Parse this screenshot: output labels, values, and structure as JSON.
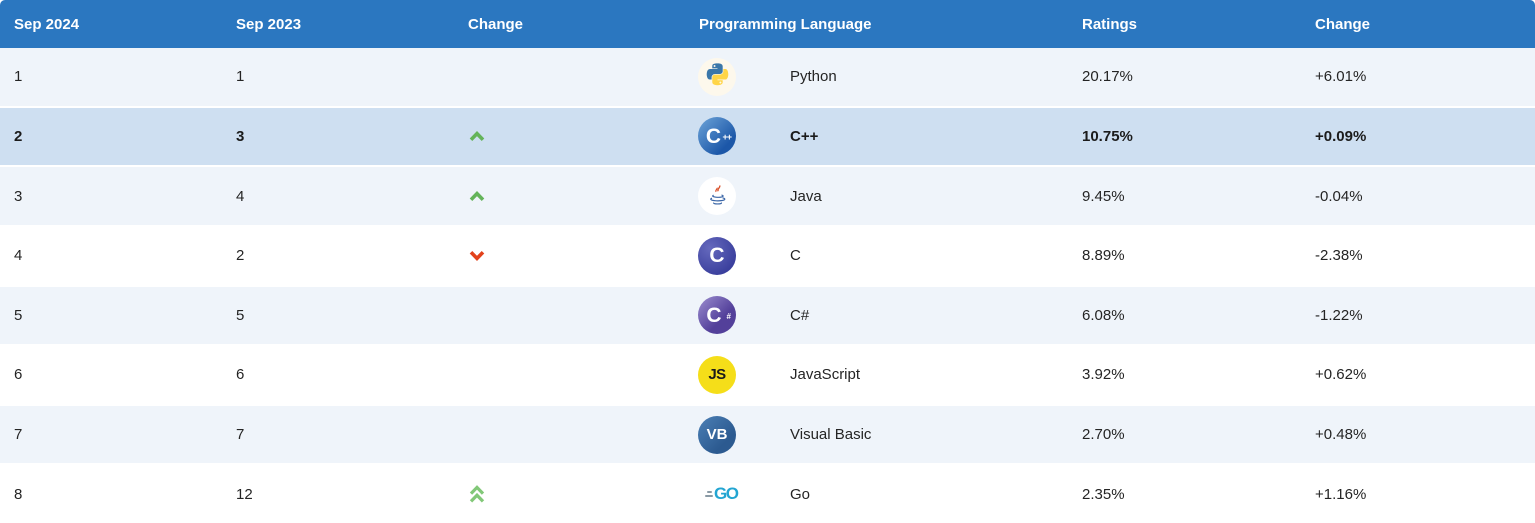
{
  "table": {
    "headers": {
      "rank_current": "Sep 2024",
      "rank_previous": "Sep 2023",
      "rank_change": "Change",
      "language": "Programming Language",
      "ratings": "Ratings",
      "ratings_change": "Change"
    },
    "rows": [
      {
        "rank_current": "1",
        "rank_previous": "1",
        "change": "none",
        "icon": "python-icon",
        "language": "Python",
        "ratings": "20.17%",
        "ratings_change": "+6.01%",
        "highlighted": false
      },
      {
        "rank_current": "2",
        "rank_previous": "3",
        "change": "up",
        "icon": "cpp-icon",
        "language": "C++",
        "ratings": "10.75%",
        "ratings_change": "+0.09%",
        "highlighted": true
      },
      {
        "rank_current": "3",
        "rank_previous": "4",
        "change": "up",
        "icon": "java-icon",
        "language": "Java",
        "ratings": "9.45%",
        "ratings_change": "-0.04%",
        "highlighted": false
      },
      {
        "rank_current": "4",
        "rank_previous": "2",
        "change": "down",
        "icon": "c-icon",
        "language": "C",
        "ratings": "8.89%",
        "ratings_change": "-2.38%",
        "highlighted": false
      },
      {
        "rank_current": "5",
        "rank_previous": "5",
        "change": "none",
        "icon": "csharp-icon",
        "language": "C#",
        "ratings": "6.08%",
        "ratings_change": "-1.22%",
        "highlighted": false
      },
      {
        "rank_current": "6",
        "rank_previous": "6",
        "change": "none",
        "icon": "javascript-icon",
        "language": "JavaScript",
        "ratings": "3.92%",
        "ratings_change": "+0.62%",
        "highlighted": false
      },
      {
        "rank_current": "7",
        "rank_previous": "7",
        "change": "none",
        "icon": "visual-basic-icon",
        "language": "Visual Basic",
        "ratings": "2.70%",
        "ratings_change": "+0.48%",
        "highlighted": false
      },
      {
        "rank_current": "8",
        "rank_previous": "12",
        "change": "double-up",
        "icon": "go-icon",
        "language": "Go",
        "ratings": "2.35%",
        "ratings_change": "+1.16%",
        "highlighted": false
      }
    ],
    "colors": {
      "header_bg": "#2b77c0",
      "header_text": "#ffffff",
      "row_light_bg": "#eff4fa",
      "row_white_bg": "#ffffff",
      "row_highlight_bg": "#cedff1",
      "up_arrow": "#64b45a",
      "double_up_arrow": "#82c878",
      "down_arrow": "#e2421c"
    }
  }
}
